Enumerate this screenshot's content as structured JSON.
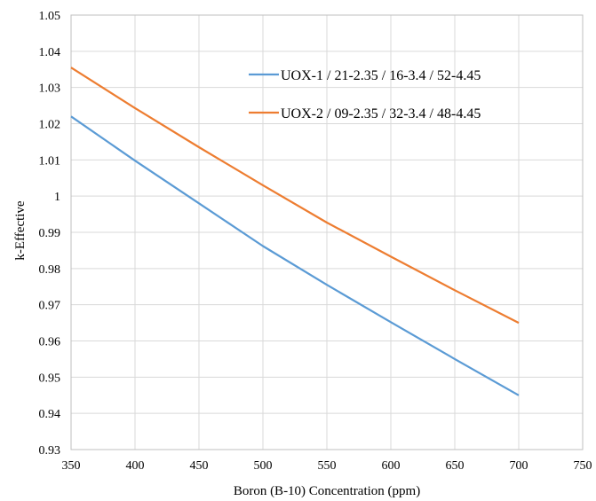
{
  "chart_data": {
    "type": "line",
    "xlabel": "Boron (B-10) Concentration  (ppm)",
    "ylabel": "k-Effective",
    "xlim": [
      350,
      750
    ],
    "ylim": [
      0.93,
      1.05
    ],
    "x_ticks": [
      "350",
      "400",
      "450",
      "500",
      "550",
      "600",
      "650",
      "700",
      "750"
    ],
    "y_ticks": [
      "0.93",
      "0.94",
      "0.95",
      "0.96",
      "0.97",
      "0.98",
      "0.99",
      "1",
      "1.01",
      "1.02",
      "1.03",
      "1.04",
      "1.05"
    ],
    "grid": true,
    "legend_position": "top-right",
    "series": [
      {
        "name": "UOX-1 / 21-2.35 / 16-3.4 / 52-4.45",
        "color": "#5B9BD5",
        "x": [
          350,
          400,
          450,
          500,
          550,
          600,
          650,
          700
        ],
        "y": [
          1.022,
          1.0098,
          0.998,
          0.9862,
          0.9755,
          0.9652,
          0.955,
          0.945
        ]
      },
      {
        "name": "UOX-2 / 09-2.35 / 32-3.4 / 48-4.45",
        "color": "#ED7D31",
        "x": [
          350,
          400,
          450,
          500,
          550,
          600,
          650,
          700
        ],
        "y": [
          1.0355,
          1.0243,
          1.0135,
          1.003,
          0.9927,
          0.9833,
          0.974,
          0.965
        ]
      }
    ]
  }
}
